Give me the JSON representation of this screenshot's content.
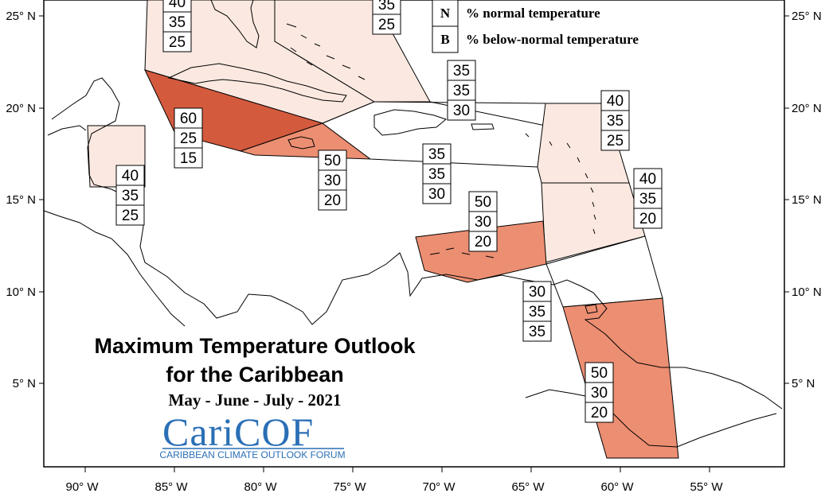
{
  "title": {
    "line1": "Maximum Temperature Outlook",
    "line2": "for the Caribbean",
    "period": "May - June - July - 2021"
  },
  "logo": {
    "name": "CariCOF",
    "subtitle": "CARIBBEAN CLIMATE OUTLOOK FORUM",
    "color": "#2a6fb6"
  },
  "legend": [
    {
      "letter": "N",
      "label": "% normal temperature"
    },
    {
      "letter": "B",
      "label": "% below-normal temperature"
    }
  ],
  "axes": {
    "x_ticks": [
      "90° W",
      "85° W",
      "80° W",
      "75° W",
      "70° W",
      "65° W",
      "60° W",
      "55° W"
    ],
    "y_ticks": [
      "25° N",
      "20° N",
      "15° N",
      "10° N",
      "5° N"
    ]
  },
  "colors": {
    "above_60": "#d45a3e",
    "above_50": "#ec8e72",
    "above_40": "#fbe9e1",
    "above_35": "#ffffff",
    "border": "#000000"
  },
  "forecast_boxes": [
    {
      "name": "florida-box",
      "values": [
        "40",
        "35",
        "25"
      ]
    },
    {
      "name": "bahamas-box",
      "values": [
        "35",
        "25"
      ]
    },
    {
      "name": "turks-caicos-box",
      "values": [
        "35",
        "35",
        "30"
      ]
    },
    {
      "name": "northern-leewards-box",
      "values": [
        "40",
        "35",
        "25"
      ]
    },
    {
      "name": "cayman-box",
      "values": [
        "60",
        "25",
        "15"
      ]
    },
    {
      "name": "belize-box",
      "values": [
        "40",
        "35",
        "25"
      ]
    },
    {
      "name": "jamaica-box",
      "values": [
        "50",
        "30",
        "20"
      ]
    },
    {
      "name": "hispaniola-box",
      "values": [
        "35",
        "35",
        "30"
      ]
    },
    {
      "name": "windwards-box",
      "values": [
        "40",
        "35",
        "20"
      ]
    },
    {
      "name": "abc-islands-box",
      "values": [
        "50",
        "30",
        "20"
      ]
    },
    {
      "name": "trinidad-box",
      "values": [
        "30",
        "35",
        "35"
      ]
    },
    {
      "name": "guianas-box",
      "values": [
        "50",
        "30",
        "20"
      ]
    }
  ]
}
